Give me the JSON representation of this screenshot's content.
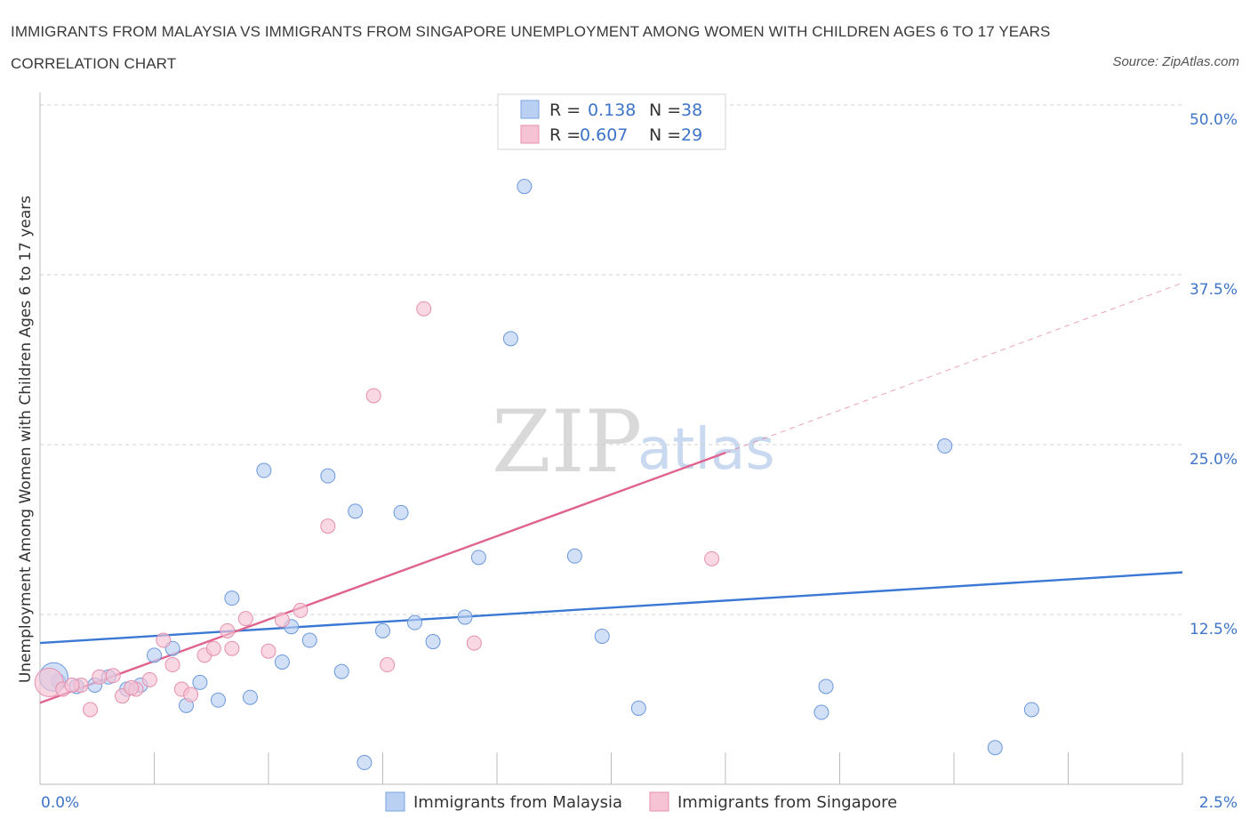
{
  "header": {
    "title": "IMMIGRANTS FROM MALAYSIA VS IMMIGRANTS FROM SINGAPORE UNEMPLOYMENT AMONG WOMEN WITH CHILDREN AGES 6 TO 17 YEARS CORRELATION CHART",
    "source": "Source: ZipAtlas.com"
  },
  "watermark": {
    "zip": "ZIP",
    "atlas": "atlas"
  },
  "colors": {
    "malaysia": "#3a78d4",
    "malaysia_fill": "#b9d0f2",
    "singapore": "#e0628f",
    "singapore_fill": "#f6c3d4",
    "tick_text": "#3e74c8",
    "grid": "#d0d0d0"
  },
  "chart_data": {
    "type": "scatter",
    "title": "IMMIGRANTS FROM MALAYSIA VS IMMIGRANTS FROM SINGAPORE UNEMPLOYMENT AMONG WOMEN WITH CHILDREN AGES 6 TO 17 YEARS CORRELATION CHART",
    "xlabel": "",
    "ylabel": "Unemployment Among Women with Children Ages 6 to 17 years",
    "xlim": [
      0,
      2.5
    ],
    "ylim": [
      0,
      50
    ],
    "x_tick_labels": [
      "0.0%",
      "2.5%"
    ],
    "y_ticks": [
      12.5,
      25.0,
      37.5,
      50.0
    ],
    "y_tick_labels": [
      "12.5%",
      "25.0%",
      "37.5%",
      "50.0%"
    ],
    "grid": true,
    "legend_position": "top-center",
    "stats_legend": [
      {
        "r_label": "R =",
        "r_value": "0.138",
        "n_label": "N =",
        "n_value": "38"
      },
      {
        "r_label": "R =",
        "r_value": "0.607",
        "n_label": "N =",
        "n_value": "29"
      }
    ],
    "series": [
      {
        "name": "Immigrants from Malaysia",
        "color": "#3a78d4",
        "points": [
          [
            0.04,
            7.6
          ],
          [
            0.08,
            7.2
          ],
          [
            0.12,
            7.3
          ],
          [
            0.15,
            7.9
          ],
          [
            0.19,
            7.0
          ],
          [
            0.22,
            7.3
          ],
          [
            0.25,
            9.5
          ],
          [
            0.29,
            10.0
          ],
          [
            0.32,
            5.8
          ],
          [
            0.35,
            7.5
          ],
          [
            0.39,
            6.2
          ],
          [
            0.42,
            13.7
          ],
          [
            0.46,
            6.4
          ],
          [
            0.49,
            23.1
          ],
          [
            0.53,
            9.0
          ],
          [
            0.55,
            11.6
          ],
          [
            0.59,
            10.6
          ],
          [
            0.63,
            22.7
          ],
          [
            0.66,
            8.3
          ],
          [
            0.69,
            20.1
          ],
          [
            0.71,
            1.6
          ],
          [
            0.75,
            11.3
          ],
          [
            0.79,
            20.0
          ],
          [
            0.82,
            11.9
          ],
          [
            0.86,
            10.5
          ],
          [
            0.93,
            12.3
          ],
          [
            0.96,
            16.7
          ],
          [
            1.03,
            32.8
          ],
          [
            1.06,
            44.0
          ],
          [
            1.17,
            16.8
          ],
          [
            1.23,
            10.9
          ],
          [
            1.31,
            5.6
          ],
          [
            1.71,
            5.3
          ],
          [
            1.72,
            7.2
          ],
          [
            1.98,
            24.9
          ],
          [
            2.09,
            2.7
          ],
          [
            2.17,
            5.5
          ],
          [
            0.03,
            7.9
          ]
        ],
        "trend": {
          "x": [
            0.0,
            2.5
          ],
          "y": [
            10.4,
            15.6
          ]
        }
      },
      {
        "name": "Immigrants from Singapore",
        "color": "#e0628f",
        "points": [
          [
            0.02,
            7.5
          ],
          [
            0.05,
            7.0
          ],
          [
            0.09,
            7.3
          ],
          [
            0.11,
            5.5
          ],
          [
            0.13,
            7.9
          ],
          [
            0.16,
            8.0
          ],
          [
            0.18,
            6.5
          ],
          [
            0.21,
            7.0
          ],
          [
            0.24,
            7.7
          ],
          [
            0.27,
            10.6
          ],
          [
            0.29,
            8.8
          ],
          [
            0.31,
            7.0
          ],
          [
            0.33,
            6.6
          ],
          [
            0.36,
            9.5
          ],
          [
            0.38,
            10.0
          ],
          [
            0.41,
            11.3
          ],
          [
            0.42,
            10.0
          ],
          [
            0.45,
            12.2
          ],
          [
            0.5,
            9.8
          ],
          [
            0.53,
            12.1
          ],
          [
            0.57,
            12.8
          ],
          [
            0.63,
            19.0
          ],
          [
            0.73,
            28.6
          ],
          [
            0.76,
            8.8
          ],
          [
            0.84,
            35.0
          ],
          [
            0.95,
            10.4
          ],
          [
            1.47,
            16.6
          ],
          [
            0.07,
            7.3
          ],
          [
            0.2,
            7.1
          ]
        ],
        "trend": {
          "x": [
            0.0,
            1.5
          ],
          "y": [
            6.0,
            24.4
          ]
        },
        "trend_dashed": {
          "x": [
            1.5,
            2.5
          ],
          "y": [
            24.4,
            36.9
          ]
        }
      }
    ]
  },
  "bottom_legend": [
    {
      "label": "Immigrants from Malaysia"
    },
    {
      "label": "Immigrants from Singapore"
    }
  ]
}
